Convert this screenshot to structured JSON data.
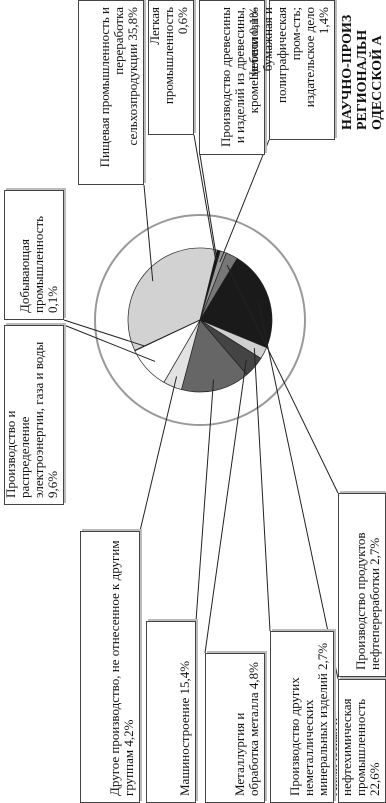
{
  "chart_data": {
    "type": "pie",
    "categories": [
      "Пищевая промышленность и переработка сельхозпродукции",
      "Легкая промышленность",
      "Производство древесины и изделий из древесины, кроме мебели",
      "Целлюлозно-бумажная и полиграфическая пром-сть; издательское дело",
      "Производство продуктов нефтепереработки",
      "Химическая и нефтехимическая промышленность",
      "Производство других неметаллических минеральных изделий",
      "Металлургия и обработка металла",
      "Машиностроение",
      "Другое производство, не отнесенное к другим группам",
      "Производство и распределение электроэнергии, газа и воды",
      "Добывающая промышленность"
    ],
    "values": [
      35.8,
      0.6,
      0.1,
      1.4,
      2.7,
      22.6,
      2.7,
      4.8,
      15.4,
      4.2,
      9.6,
      0.1
    ],
    "value_labels": [
      "35,8%",
      "0,6%",
      "0,1%",
      "1,4%",
      "2,7%",
      "22,6%",
      "2,7%",
      "4,8%",
      "15,4%",
      "4,2%",
      "9,6%",
      "0,1%"
    ],
    "colors": [
      "#d2d2d2",
      "#111111",
      "#888888",
      "#9a9a9a",
      "#777777",
      "#1a1a1a",
      "#cfcfcf",
      "#444444",
      "#666666",
      "#e2e2e2",
      "#ffffff",
      "#555555"
    ]
  },
  "header": {
    "lines": [
      "НАУЧНО-ПРОИЗ",
      "РЕГИОНАЛЬН",
      "ОДЕССКОЙ А"
    ]
  }
}
